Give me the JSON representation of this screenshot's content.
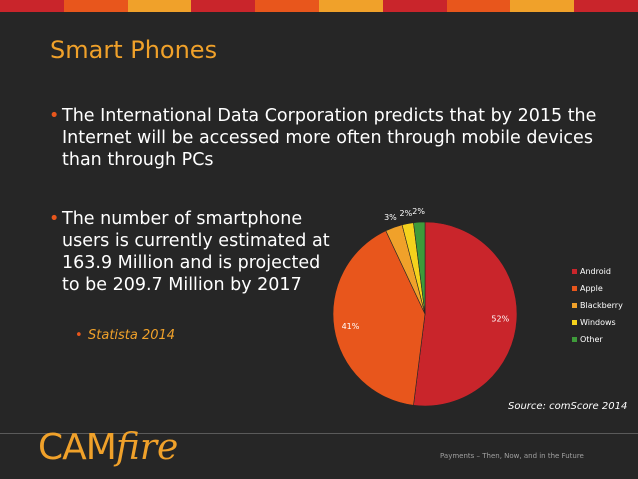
{
  "header_stripe_colors": [
    "#c9252b",
    "#e8561c",
    "#f0a12a",
    "#c9252b",
    "#e8561c",
    "#f0a12a",
    "#c9252b",
    "#e8561c",
    "#f0a12a",
    "#c9252b"
  ],
  "slide": {
    "title": "Smart Phones",
    "bullet1": "The International Data Corporation predicts that by 2015 the Internet will be accessed more often through mobile devices than through PCs",
    "bullet2": "The number of smartphone users is currently estimated at 163.9 Million and is projected to be 209.7 Million by 2017",
    "sub_bullet": "Statista 2014",
    "bullet_marker": "•",
    "source": "Source: comScore 2014",
    "footer": "Payments – Then, Now, and in the Future",
    "logo_cam": "CAM",
    "logo_fire": "fire"
  },
  "chart_data": {
    "type": "pie",
    "categories": [
      "Android",
      "Apple",
      "Blackberry",
      "Windows",
      "Other"
    ],
    "values": [
      52,
      41,
      3,
      2,
      2
    ],
    "data_labels": [
      "52%",
      "41%",
      "3%",
      "2%",
      "2%"
    ],
    "colors": [
      "#c9252b",
      "#e8561c",
      "#f0a12a",
      "#f5d21c",
      "#3e9b3a"
    ],
    "legend_position": "right"
  }
}
